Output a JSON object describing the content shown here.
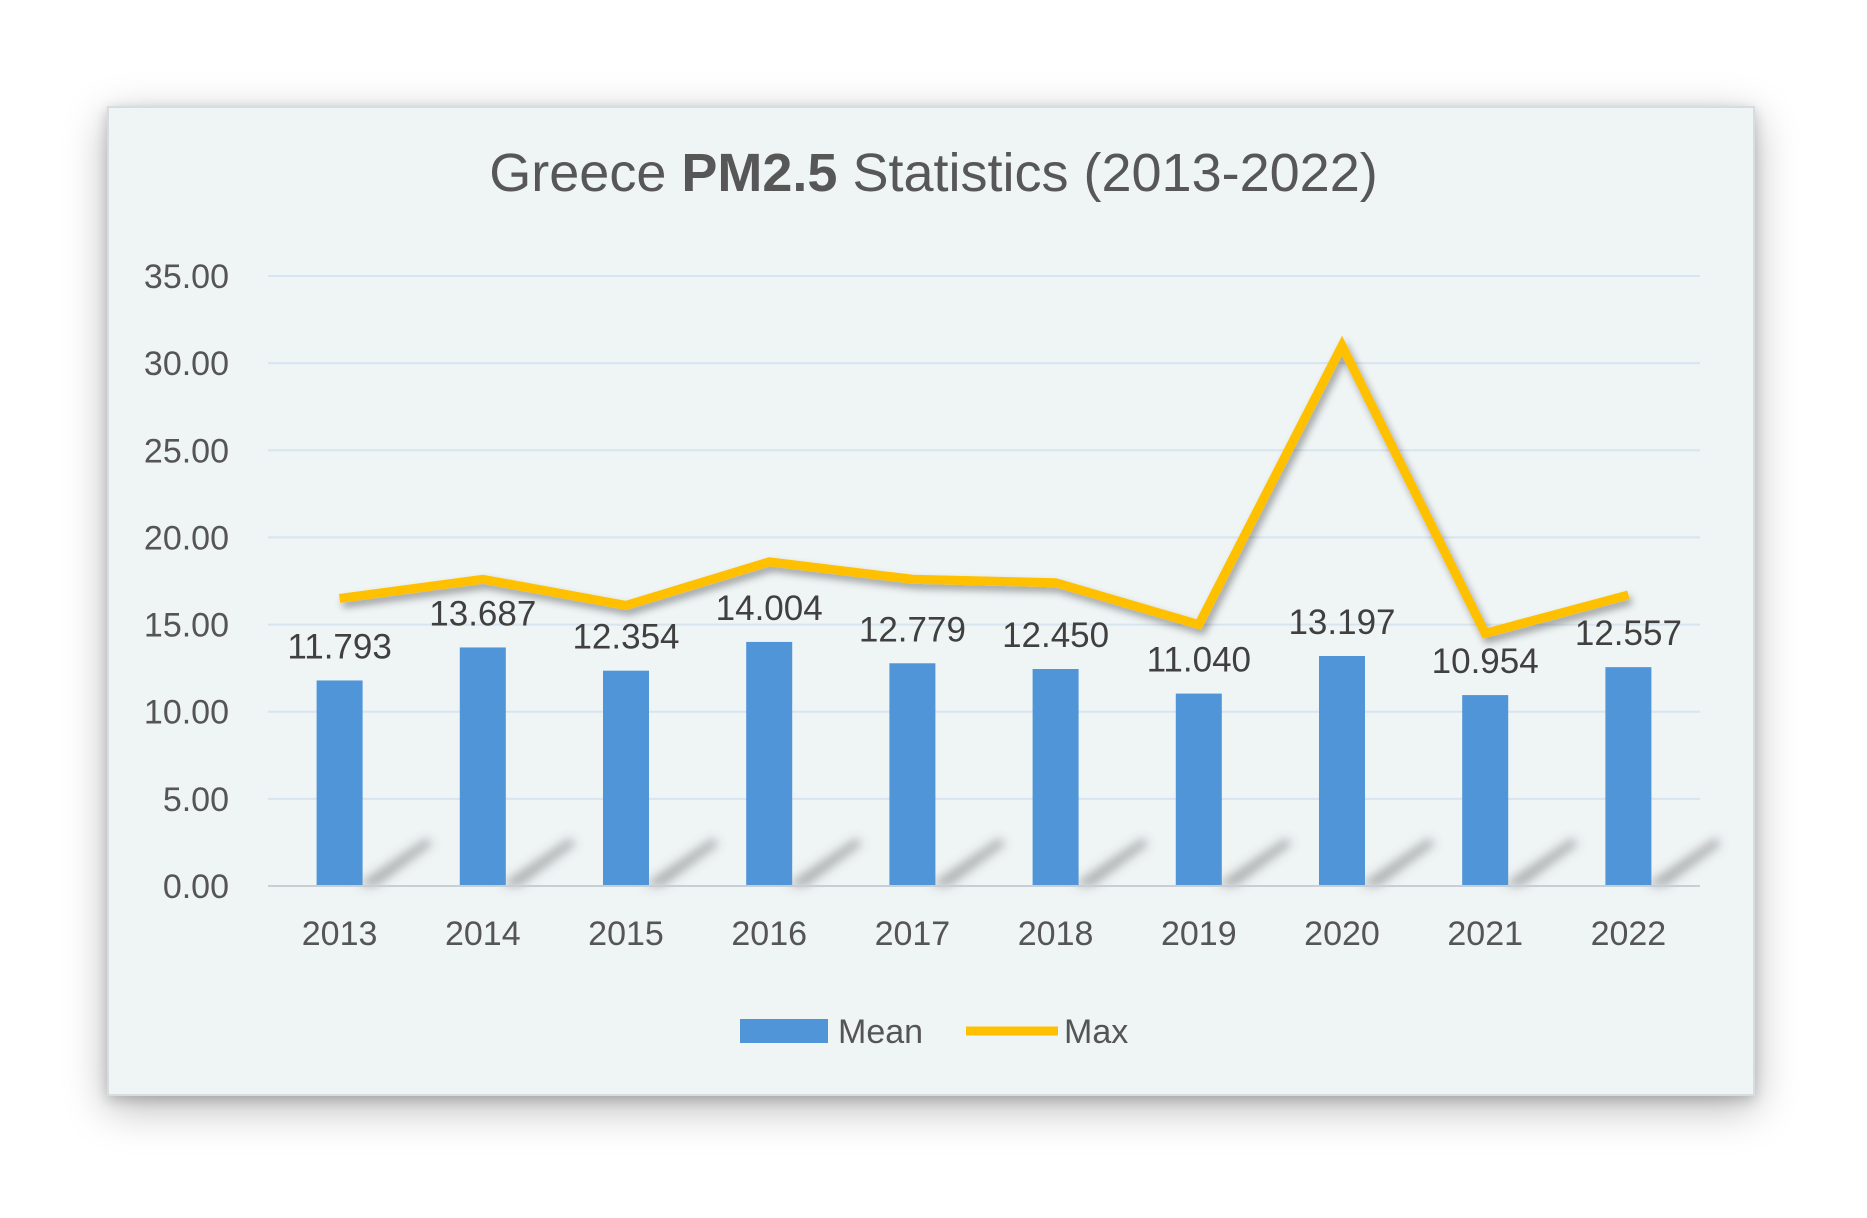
{
  "chart_data": {
    "type": "bar",
    "title_parts": [
      "Greece ",
      "PM2.5",
      " Statistics (2013-2022)"
    ],
    "categories": [
      "2013",
      "2014",
      "2015",
      "2016",
      "2017",
      "2018",
      "2019",
      "2020",
      "2021",
      "2022"
    ],
    "series": [
      {
        "name": "Mean",
        "type": "bar",
        "values": [
          11.793,
          13.687,
          12.354,
          14.004,
          12.779,
          12.45,
          11.04,
          13.197,
          10.954,
          12.557
        ],
        "data_labels": [
          "11.793",
          "13.687",
          "12.354",
          "14.004",
          "12.779",
          "12.450",
          "11.040",
          "13.197",
          "10.954",
          "12.557"
        ],
        "color": "#4f95d8"
      },
      {
        "name": "Max",
        "type": "line",
        "values": [
          16.5,
          17.6,
          16.1,
          18.6,
          17.6,
          17.4,
          15.0,
          31.0,
          14.5,
          16.7
        ],
        "color": "#ffc000"
      }
    ],
    "ylim": [
      0,
      35
    ],
    "yticks": [
      "0.00",
      "5.00",
      "10.00",
      "15.00",
      "20.00",
      "25.00",
      "30.00",
      "35.00"
    ],
    "grid": true,
    "legend": "bottom",
    "xlabel": "",
    "ylabel": ""
  }
}
